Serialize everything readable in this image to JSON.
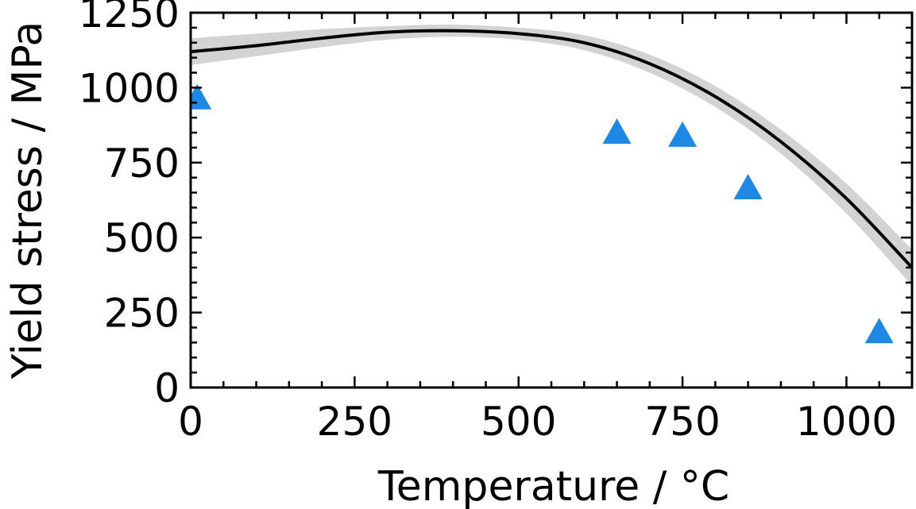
{
  "chart_data": {
    "type": "line",
    "xlabel": "Temperature / °C",
    "ylabel": "Yield stress / MPa",
    "xlim": [
      0,
      1100
    ],
    "ylim": [
      0,
      1250
    ],
    "x_ticks": [
      0,
      250,
      500,
      750,
      1000
    ],
    "y_ticks": [
      0,
      250,
      500,
      750,
      1000,
      1250
    ],
    "grid": false,
    "colors": {
      "line": "#000000",
      "band": "#d3d3d3",
      "markers": "#1e88e5"
    },
    "series": [
      {
        "kind": "line-with-band",
        "points": [
          {
            "x": 0,
            "y": 1120,
            "lo": 1075,
            "hi": 1165
          },
          {
            "x": 100,
            "y": 1140,
            "lo": 1105,
            "hi": 1180
          },
          {
            "x": 200,
            "y": 1165,
            "lo": 1135,
            "hi": 1195
          },
          {
            "x": 300,
            "y": 1185,
            "lo": 1160,
            "hi": 1205
          },
          {
            "x": 400,
            "y": 1190,
            "lo": 1170,
            "hi": 1210
          },
          {
            "x": 500,
            "y": 1180,
            "lo": 1160,
            "hi": 1200
          },
          {
            "x": 600,
            "y": 1150,
            "lo": 1125,
            "hi": 1175
          },
          {
            "x": 700,
            "y": 1080,
            "lo": 1050,
            "hi": 1110
          },
          {
            "x": 800,
            "y": 970,
            "lo": 935,
            "hi": 1005
          },
          {
            "x": 900,
            "y": 820,
            "lo": 780,
            "hi": 860
          },
          {
            "x": 1000,
            "y": 630,
            "lo": 580,
            "hi": 680
          },
          {
            "x": 1100,
            "y": 400,
            "lo": 340,
            "hi": 460
          }
        ]
      },
      {
        "kind": "markers",
        "marker": "triangle",
        "points": [
          {
            "x": 10,
            "y": 970
          },
          {
            "x": 650,
            "y": 855
          },
          {
            "x": 750,
            "y": 845
          },
          {
            "x": 850,
            "y": 670
          },
          {
            "x": 1050,
            "y": 190
          }
        ]
      }
    ]
  }
}
